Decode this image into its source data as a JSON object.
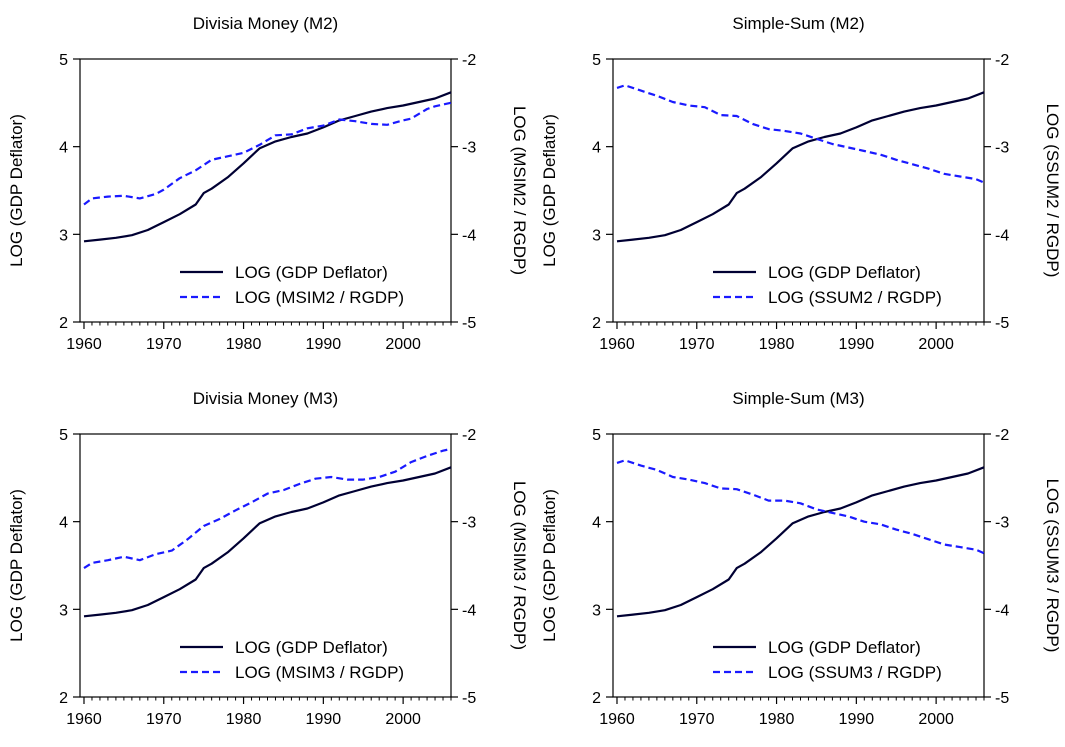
{
  "colors": {
    "gdp_line": "#000033",
    "money_line": "#1a1aff",
    "axis": "#000000",
    "background": "#ffffff"
  },
  "chart_data": [
    {
      "type": "line",
      "title": "Divisia Money (M2)",
      "ylabel_left": "LOG (GDP Deflator)",
      "ylabel_right": "LOG (MSIM2 / RGDP)",
      "xlim": [
        1959.5,
        2006
      ],
      "ylim_left": [
        2,
        5
      ],
      "ylim_right": [
        -5,
        -2
      ],
      "xticks": [
        1960,
        1970,
        1980,
        1990,
        2000
      ],
      "yticks_left": [
        2,
        3,
        4,
        5
      ],
      "yticks_right": [
        -5,
        -4,
        -3,
        -2
      ],
      "legend_position": "bottom-right",
      "series": [
        {
          "name": "LOG (GDP Deflator)",
          "axis": "left",
          "style": "solid",
          "x": [
            1960,
            1962,
            1964,
            1966,
            1968,
            1970,
            1972,
            1974,
            1975,
            1976,
            1978,
            1980,
            1982,
            1984,
            1986,
            1988,
            1990,
            1992,
            1994,
            1996,
            1998,
            2000,
            2002,
            2004,
            2006
          ],
          "y": [
            2.92,
            2.94,
            2.96,
            2.99,
            3.05,
            3.14,
            3.23,
            3.34,
            3.47,
            3.52,
            3.65,
            3.81,
            3.98,
            4.06,
            4.11,
            4.15,
            4.22,
            4.3,
            4.35,
            4.4,
            4.44,
            4.47,
            4.51,
            4.55,
            4.62
          ]
        },
        {
          "name": "LOG (MSIM2 / RGDP)",
          "axis": "right",
          "style": "dashed",
          "x": [
            1960,
            1961,
            1963,
            1965,
            1967,
            1969,
            1970,
            1972,
            1974,
            1976,
            1978,
            1980,
            1982,
            1984,
            1986,
            1988,
            1990,
            1992,
            1994,
            1996,
            1998,
            2000,
            2001,
            2003,
            2004,
            2006
          ],
          "y": [
            -3.66,
            -3.59,
            -3.57,
            -3.56,
            -3.59,
            -3.54,
            -3.49,
            -3.36,
            -3.27,
            -3.15,
            -3.11,
            -3.07,
            -2.98,
            -2.87,
            -2.86,
            -2.79,
            -2.76,
            -2.69,
            -2.71,
            -2.74,
            -2.75,
            -2.7,
            -2.68,
            -2.57,
            -2.54,
            -2.5
          ]
        }
      ]
    },
    {
      "type": "line",
      "title": "Simple-Sum (M2)",
      "ylabel_left": "LOG (GDP Deflator)",
      "ylabel_right": "LOG (SSUM2 / RGDP)",
      "xlim": [
        1959.5,
        2006
      ],
      "ylim_left": [
        2,
        5
      ],
      "ylim_right": [
        -5,
        -2
      ],
      "xticks": [
        1960,
        1970,
        1980,
        1990,
        2000
      ],
      "yticks_left": [
        2,
        3,
        4,
        5
      ],
      "yticks_right": [
        -5,
        -4,
        -3,
        -2
      ],
      "legend_position": "bottom-right",
      "series": [
        {
          "name": "LOG (GDP Deflator)",
          "axis": "left",
          "style": "solid",
          "x": [
            1960,
            1962,
            1964,
            1966,
            1968,
            1970,
            1972,
            1974,
            1975,
            1976,
            1978,
            1980,
            1982,
            1984,
            1986,
            1988,
            1990,
            1992,
            1994,
            1996,
            1998,
            2000,
            2002,
            2004,
            2006
          ],
          "y": [
            2.92,
            2.94,
            2.96,
            2.99,
            3.05,
            3.14,
            3.23,
            3.34,
            3.47,
            3.52,
            3.65,
            3.81,
            3.98,
            4.06,
            4.11,
            4.15,
            4.22,
            4.3,
            4.35,
            4.4,
            4.44,
            4.47,
            4.51,
            4.55,
            4.62
          ]
        },
        {
          "name": "LOG (SSUM2 / RGDP)",
          "axis": "right",
          "style": "dashed",
          "x": [
            1960,
            1961,
            1963,
            1965,
            1967,
            1969,
            1971,
            1973,
            1975,
            1977,
            1979,
            1981,
            1983,
            1985,
            1987,
            1989,
            1991,
            1993,
            1995,
            1997,
            1999,
            2001,
            2003,
            2005,
            2006
          ],
          "y": [
            -2.33,
            -2.3,
            -2.36,
            -2.42,
            -2.49,
            -2.53,
            -2.55,
            -2.64,
            -2.65,
            -2.74,
            -2.8,
            -2.82,
            -2.85,
            -2.91,
            -2.97,
            -3.01,
            -3.05,
            -3.09,
            -3.15,
            -3.2,
            -3.25,
            -3.31,
            -3.34,
            -3.37,
            -3.41
          ]
        }
      ]
    },
    {
      "type": "line",
      "title": "Divisia Money (M3)",
      "ylabel_left": "LOG (GDP Deflator)",
      "ylabel_right": "LOG (MSIM3 / RGDP)",
      "xlim": [
        1959.5,
        2006
      ],
      "ylim_left": [
        2,
        5
      ],
      "ylim_right": [
        -5,
        -2
      ],
      "xticks": [
        1960,
        1970,
        1980,
        1990,
        2000
      ],
      "yticks_left": [
        2,
        3,
        4,
        5
      ],
      "yticks_right": [
        -5,
        -4,
        -3,
        -2
      ],
      "legend_position": "bottom-right",
      "series": [
        {
          "name": "LOG (GDP Deflator)",
          "axis": "left",
          "style": "solid",
          "x": [
            1960,
            1962,
            1964,
            1966,
            1968,
            1970,
            1972,
            1974,
            1975,
            1976,
            1978,
            1980,
            1982,
            1984,
            1986,
            1988,
            1990,
            1992,
            1994,
            1996,
            1998,
            2000,
            2002,
            2004,
            2006
          ],
          "y": [
            2.92,
            2.94,
            2.96,
            2.99,
            3.05,
            3.14,
            3.23,
            3.34,
            3.47,
            3.52,
            3.65,
            3.81,
            3.98,
            4.06,
            4.11,
            4.15,
            4.22,
            4.3,
            4.35,
            4.4,
            4.44,
            4.47,
            4.51,
            4.55,
            4.62
          ]
        },
        {
          "name": "LOG (MSIM3 / RGDP)",
          "axis": "right",
          "style": "dashed",
          "x": [
            1960,
            1961,
            1963,
            1965,
            1967,
            1969,
            1971,
            1973,
            1975,
            1977,
            1979,
            1981,
            1983,
            1985,
            1987,
            1989,
            1991,
            1993,
            1995,
            1997,
            1999,
            2001,
            2003,
            2005,
            2006
          ],
          "y": [
            -3.53,
            -3.47,
            -3.44,
            -3.4,
            -3.44,
            -3.37,
            -3.33,
            -3.2,
            -3.05,
            -2.97,
            -2.87,
            -2.78,
            -2.68,
            -2.64,
            -2.57,
            -2.51,
            -2.49,
            -2.52,
            -2.52,
            -2.49,
            -2.43,
            -2.32,
            -2.25,
            -2.19,
            -2.17
          ]
        }
      ]
    },
    {
      "type": "line",
      "title": "Simple-Sum (M3)",
      "ylabel_left": "LOG (GDP Deflator)",
      "ylabel_right": "LOG (SSUM3 / RGDP)",
      "xlim": [
        1959.5,
        2006
      ],
      "ylim_left": [
        2,
        5
      ],
      "ylim_right": [
        -5,
        -2
      ],
      "xticks": [
        1960,
        1970,
        1980,
        1990,
        2000
      ],
      "yticks_left": [
        2,
        3,
        4,
        5
      ],
      "yticks_right": [
        -5,
        -4,
        -3,
        -2
      ],
      "legend_position": "bottom-right",
      "series": [
        {
          "name": "LOG (GDP Deflator)",
          "axis": "left",
          "style": "solid",
          "x": [
            1960,
            1962,
            1964,
            1966,
            1968,
            1970,
            1972,
            1974,
            1975,
            1976,
            1978,
            1980,
            1982,
            1984,
            1986,
            1988,
            1990,
            1992,
            1994,
            1996,
            1998,
            2000,
            2002,
            2004,
            2006
          ],
          "y": [
            2.92,
            2.94,
            2.96,
            2.99,
            3.05,
            3.14,
            3.23,
            3.34,
            3.47,
            3.52,
            3.65,
            3.81,
            3.98,
            4.06,
            4.11,
            4.15,
            4.22,
            4.3,
            4.35,
            4.4,
            4.44,
            4.47,
            4.51,
            4.55,
            4.62
          ]
        },
        {
          "name": "LOG (SSUM3 / RGDP)",
          "axis": "right",
          "style": "dashed",
          "x": [
            1960,
            1961,
            1963,
            1965,
            1967,
            1969,
            1971,
            1973,
            1975,
            1977,
            1979,
            1981,
            1983,
            1985,
            1987,
            1989,
            1991,
            1993,
            1995,
            1997,
            1999,
            2001,
            2003,
            2005,
            2006
          ],
          "y": [
            -2.33,
            -2.3,
            -2.36,
            -2.41,
            -2.49,
            -2.52,
            -2.56,
            -2.62,
            -2.63,
            -2.69,
            -2.76,
            -2.76,
            -2.79,
            -2.86,
            -2.9,
            -2.94,
            -3.0,
            -3.03,
            -3.09,
            -3.14,
            -3.2,
            -3.26,
            -3.29,
            -3.32,
            -3.36
          ]
        }
      ]
    }
  ]
}
